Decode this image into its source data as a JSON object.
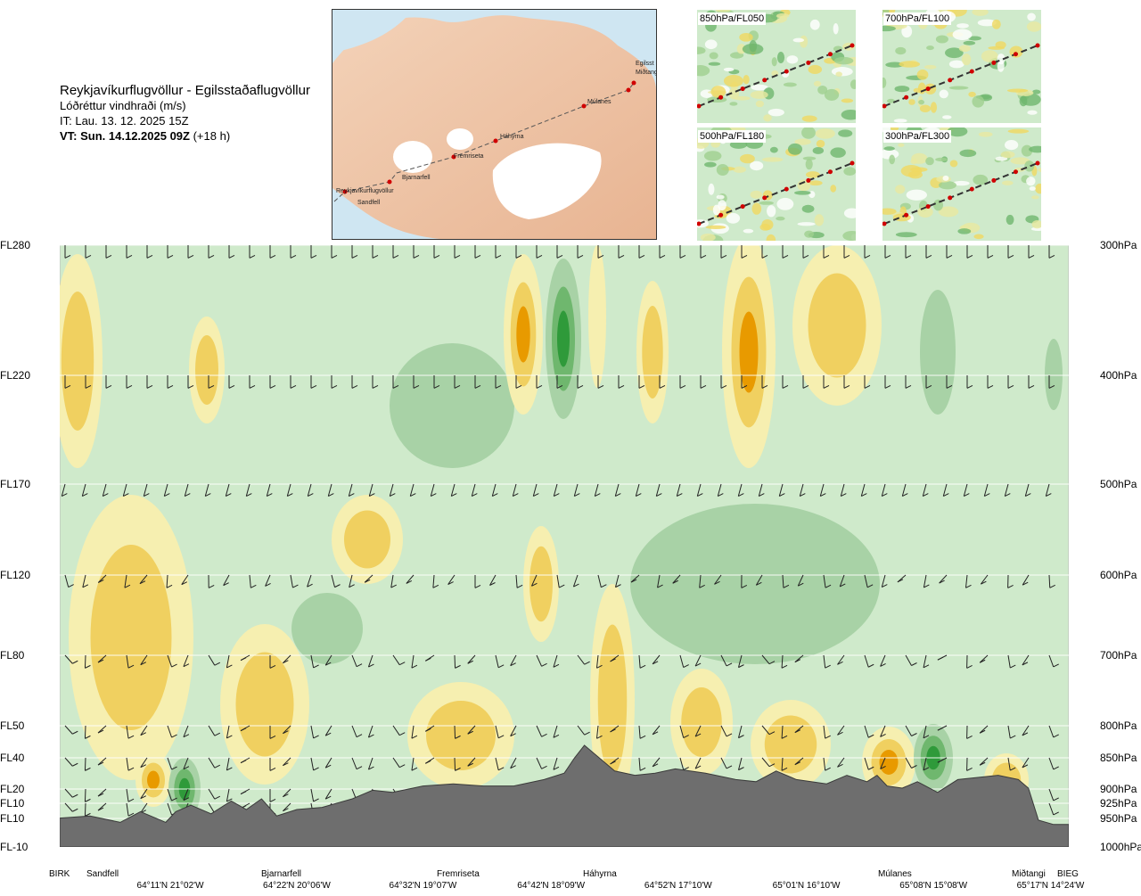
{
  "header": {
    "route": "Reykjavíkurflugvöllur - Egilsstaðaflugvöllur",
    "parameter": "Lóðréttur vindhraði (m/s)",
    "issue_time": "IT: Lau. 13. 12. 2025 15Z",
    "valid_time": "VT: Sun. 14.12.2025 09Z",
    "lead_time": "(+18 h)"
  },
  "map": {
    "waypoints": [
      "Reykjavíkurflugvöllur",
      "Sandfell",
      "Bjarnarfell",
      "Fremriseta",
      "Háhyrna",
      "Múlanes",
      "Miðtangi",
      "Egilsst"
    ]
  },
  "panels": [
    "850hPa/FL050",
    "700hPa/FL100",
    "500hPa/FL180",
    "300hPa/FL300"
  ],
  "chart_data": {
    "type": "heatmap",
    "title": "Lóðréttur vindhraði (m/s)",
    "flight_levels": [
      "FL280",
      "FL220",
      "FL170",
      "FL120",
      "FL80",
      "FL50",
      "FL40",
      "FL20",
      "FL10",
      "FL10",
      "FL-10"
    ],
    "pressure_levels_hPa": [
      300,
      400,
      500,
      600,
      700,
      800,
      850,
      900,
      925,
      950,
      1000
    ],
    "pressure_labels": [
      "300hPa",
      "400hPa",
      "500hPa",
      "600hPa",
      "700hPa",
      "800hPa",
      "850hPa",
      "900hPa",
      "925hPa",
      "950hPa",
      "1000hPa"
    ],
    "x_locations": [
      {
        "name": "BIRK",
        "pos": 0.0
      },
      {
        "name": "Sandfell",
        "pos": 0.04
      },
      {
        "name": "Bjarnarfell",
        "pos": 0.22
      },
      {
        "name": "Fremriseta",
        "pos": 0.395
      },
      {
        "name": "Háhyrna",
        "pos": 0.525
      },
      {
        "name": "Múlanes",
        "pos": 0.835
      },
      {
        "name": "Miðtangi",
        "pos": 0.965
      },
      {
        "name": "BIEG",
        "pos": 1.0
      }
    ],
    "x_coordinates": [
      {
        "label": "64°11'N 21°02'W",
        "pos": 0.11
      },
      {
        "label": "64°22'N 20°06'W",
        "pos": 0.235
      },
      {
        "label": "64°32'N 19°07'W",
        "pos": 0.36
      },
      {
        "label": "64°42'N 18°09'W",
        "pos": 0.487
      },
      {
        "label": "64°52'N 17°10'W",
        "pos": 0.613
      },
      {
        "label": "65°01'N 16°10'W",
        "pos": 0.74
      },
      {
        "label": "65°08'N 15°08'W",
        "pos": 0.866
      },
      {
        "label": "65°17'N 14°24'W",
        "pos": 0.982
      }
    ],
    "color_scale": {
      "strong_up": "#e89a00",
      "up": "#f0d060",
      "weak_up": "#f6efb0",
      "neutral": "#cfeacb",
      "weak_down": "#a8d2a6",
      "down": "#6fb76e",
      "strong_down": "#2f9a3a"
    },
    "terrain_color": "#6e6e6e",
    "terrain_elevation": [
      [
        0.0,
        0.06
      ],
      [
        0.03,
        0.07
      ],
      [
        0.06,
        0.04
      ],
      [
        0.08,
        0.09
      ],
      [
        0.095,
        0.06
      ],
      [
        0.105,
        0.04
      ],
      [
        0.115,
        0.09
      ],
      [
        0.13,
        0.12
      ],
      [
        0.15,
        0.08
      ],
      [
        0.17,
        0.14
      ],
      [
        0.185,
        0.1
      ],
      [
        0.2,
        0.15
      ],
      [
        0.215,
        0.07
      ],
      [
        0.235,
        0.1
      ],
      [
        0.26,
        0.11
      ],
      [
        0.29,
        0.15
      ],
      [
        0.31,
        0.19
      ],
      [
        0.33,
        0.18
      ],
      [
        0.36,
        0.21
      ],
      [
        0.39,
        0.22
      ],
      [
        0.42,
        0.21
      ],
      [
        0.45,
        0.21
      ],
      [
        0.48,
        0.24
      ],
      [
        0.5,
        0.27
      ],
      [
        0.51,
        0.34
      ],
      [
        0.52,
        0.4
      ],
      [
        0.53,
        0.36
      ],
      [
        0.55,
        0.28
      ],
      [
        0.57,
        0.26
      ],
      [
        0.59,
        0.27
      ],
      [
        0.61,
        0.29
      ],
      [
        0.64,
        0.27
      ],
      [
        0.67,
        0.24
      ],
      [
        0.69,
        0.23
      ],
      [
        0.71,
        0.28
      ],
      [
        0.73,
        0.24
      ],
      [
        0.76,
        0.22
      ],
      [
        0.78,
        0.26
      ],
      [
        0.8,
        0.23
      ],
      [
        0.81,
        0.26
      ],
      [
        0.82,
        0.21
      ],
      [
        0.835,
        0.2
      ],
      [
        0.85,
        0.23
      ],
      [
        0.87,
        0.18
      ],
      [
        0.89,
        0.24
      ],
      [
        0.91,
        0.25
      ],
      [
        0.93,
        0.26
      ],
      [
        0.95,
        0.24
      ],
      [
        0.96,
        0.2
      ],
      [
        0.97,
        0.05
      ],
      [
        0.985,
        0.03
      ],
      [
        1.0,
        0.03
      ]
    ]
  }
}
